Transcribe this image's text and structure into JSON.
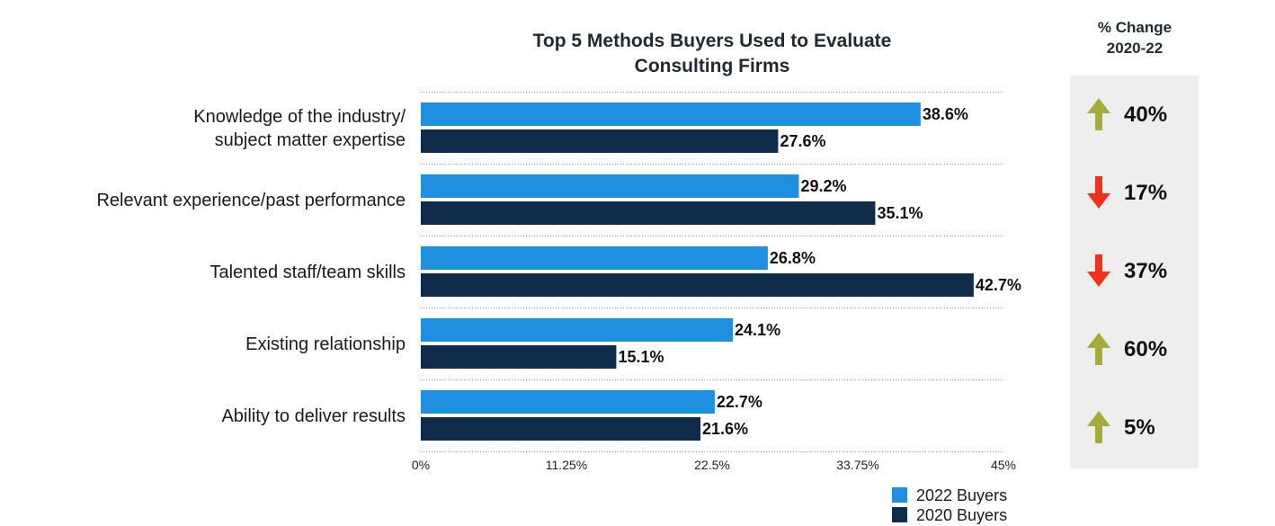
{
  "colors": {
    "series_2022": "#1e90df",
    "series_2020": "#0f2d4a",
    "arrow_up": "#a4ad3a",
    "arrow_down": "#f0321c",
    "change_panel_bg": "#eeeeee"
  },
  "chart_data": {
    "type": "bar",
    "orientation": "horizontal",
    "title_lines": [
      "Top 5 Methods Buyers Used to Evaluate",
      "Consulting Firms"
    ],
    "categories": [
      [
        "Knowledge of the industry/",
        "subject matter expertise"
      ],
      [
        "Relevant experience/past performance"
      ],
      [
        "Talented staff/team skills"
      ],
      [
        "Existing relationship"
      ],
      [
        "Ability to deliver results"
      ]
    ],
    "series": [
      {
        "name": "2022 Buyers",
        "color": "#1e90df",
        "values": [
          38.6,
          29.2,
          26.8,
          24.1,
          22.7
        ],
        "labels": [
          "38.6%",
          "29.2%",
          "26.8%",
          "24.1%",
          "22.7%"
        ]
      },
      {
        "name": "2020 Buyers",
        "color": "#0f2d4a",
        "values": [
          27.6,
          35.1,
          42.7,
          15.1,
          21.6
        ],
        "labels": [
          "27.6%",
          "35.1%",
          "42.7%",
          "15.1%",
          "21.6%"
        ]
      }
    ],
    "xlim": [
      0,
      45
    ],
    "xticks": [
      0,
      11.25,
      22.5,
      33.75,
      45
    ],
    "xtick_labels": [
      "0%",
      "11.25%",
      "22.5%",
      "33.75%",
      "45%"
    ],
    "grid": "horizontal dotted separators between categories",
    "legend_position": "bottom-right"
  },
  "change_panel": {
    "header_lines": [
      "% Change",
      "2020-22"
    ],
    "items": [
      {
        "direction": "up",
        "icon": "arrow-up-icon",
        "value": "40%"
      },
      {
        "direction": "down",
        "icon": "arrow-down-icon",
        "value": "17%"
      },
      {
        "direction": "down",
        "icon": "arrow-down-icon",
        "value": "37%"
      },
      {
        "direction": "up",
        "icon": "arrow-up-icon",
        "value": "60%"
      },
      {
        "direction": "up",
        "icon": "arrow-up-icon",
        "value": "5%"
      }
    ]
  }
}
